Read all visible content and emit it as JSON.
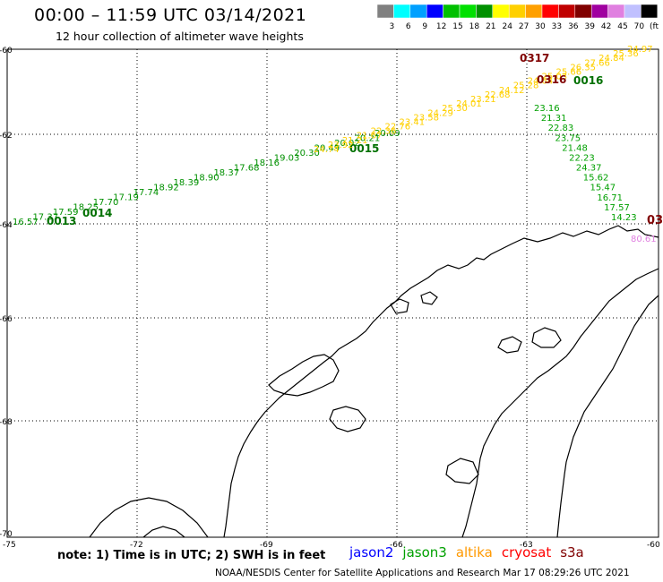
{
  "header": {
    "title": "00:00 – 11:59 UTC 03/14/2021",
    "subtitle": "12 hour collection of altimeter wave heights"
  },
  "colorbar": {
    "colors": [
      "#808080",
      "#00ffff",
      "#00a0ff",
      "#0000ff",
      "#00c000",
      "#00e000",
      "#009000",
      "#ffff00",
      "#ffd000",
      "#ffa000",
      "#ff0000",
      "#c00000",
      "#800000",
      "#a000a0",
      "#e080e0",
      "#c0c0ff",
      "#000000"
    ],
    "labels": [
      "3",
      "6",
      "9",
      "12",
      "15",
      "18",
      "21",
      "24",
      "27",
      "30",
      "33",
      "36",
      "39",
      "42",
      "45",
      "70",
      "(ft)"
    ]
  },
  "axes": {
    "y_labels": [
      "-60",
      "-62",
      "-64",
      "-66",
      "-68",
      "-70"
    ],
    "x_labels": [
      "-75",
      "-72",
      "-69",
      "-66",
      "-63",
      "-60"
    ]
  },
  "tracks": [
    {
      "name": "track-jason3",
      "color": "#009000",
      "points": [
        "16.57",
        "17.37",
        "17.59",
        "18.25",
        "17.70",
        "17.19",
        "17.74",
        "18.92",
        "18.39",
        "18.90",
        "18.37",
        "17.68",
        "18.16",
        "19.03",
        "20.30",
        "20.49",
        "20.02",
        "20.21",
        "20.09"
      ],
      "times": [
        "0013",
        "0014",
        "0015"
      ]
    },
    {
      "name": "track-jason3-yellow",
      "color": "#ffd000",
      "points": [
        "24.74",
        "23.92",
        "21.21",
        "21.67",
        "22.36",
        "22.76",
        "23.41",
        "23.58",
        "24.29",
        "25.30",
        "24.01",
        "23.21",
        "22.68",
        "24.12",
        "25.28",
        "24.64",
        "25.03",
        "25.66",
        "26.35",
        "27.66",
        "24.84",
        "25.36",
        "24.97"
      ],
      "times": [
        "0317",
        "0316"
      ]
    },
    {
      "name": "track-altika-descending",
      "color": "#00a000",
      "points": [
        "23.16",
        "21.31",
        "22.83",
        "23.75",
        "21.48",
        "22.23",
        "24.37",
        "15.62",
        "15.47",
        "16.71",
        "17.57",
        "14.23"
      ],
      "times": [
        "0016"
      ]
    },
    {
      "name": "track-s3a",
      "color": "#e080e0",
      "points": [
        "80.61"
      ],
      "times": []
    }
  ],
  "note": "note: 1) Time is in UTC; 2) SWH is in feet",
  "legend": [
    {
      "label": "jason2",
      "color": "#0000ff"
    },
    {
      "label": "jason3",
      "color": "#00a000"
    },
    {
      "label": "altika",
      "color": "#ff9900"
    },
    {
      "label": "cryosat",
      "color": "#ff0000"
    },
    {
      "label": "s3a",
      "color": "#800000"
    }
  ],
  "credit": "NOAA/NESDIS Center for Satellite Applications and Research    Mar 17 08:29:26 UTC 2021",
  "cut_label": "03"
}
